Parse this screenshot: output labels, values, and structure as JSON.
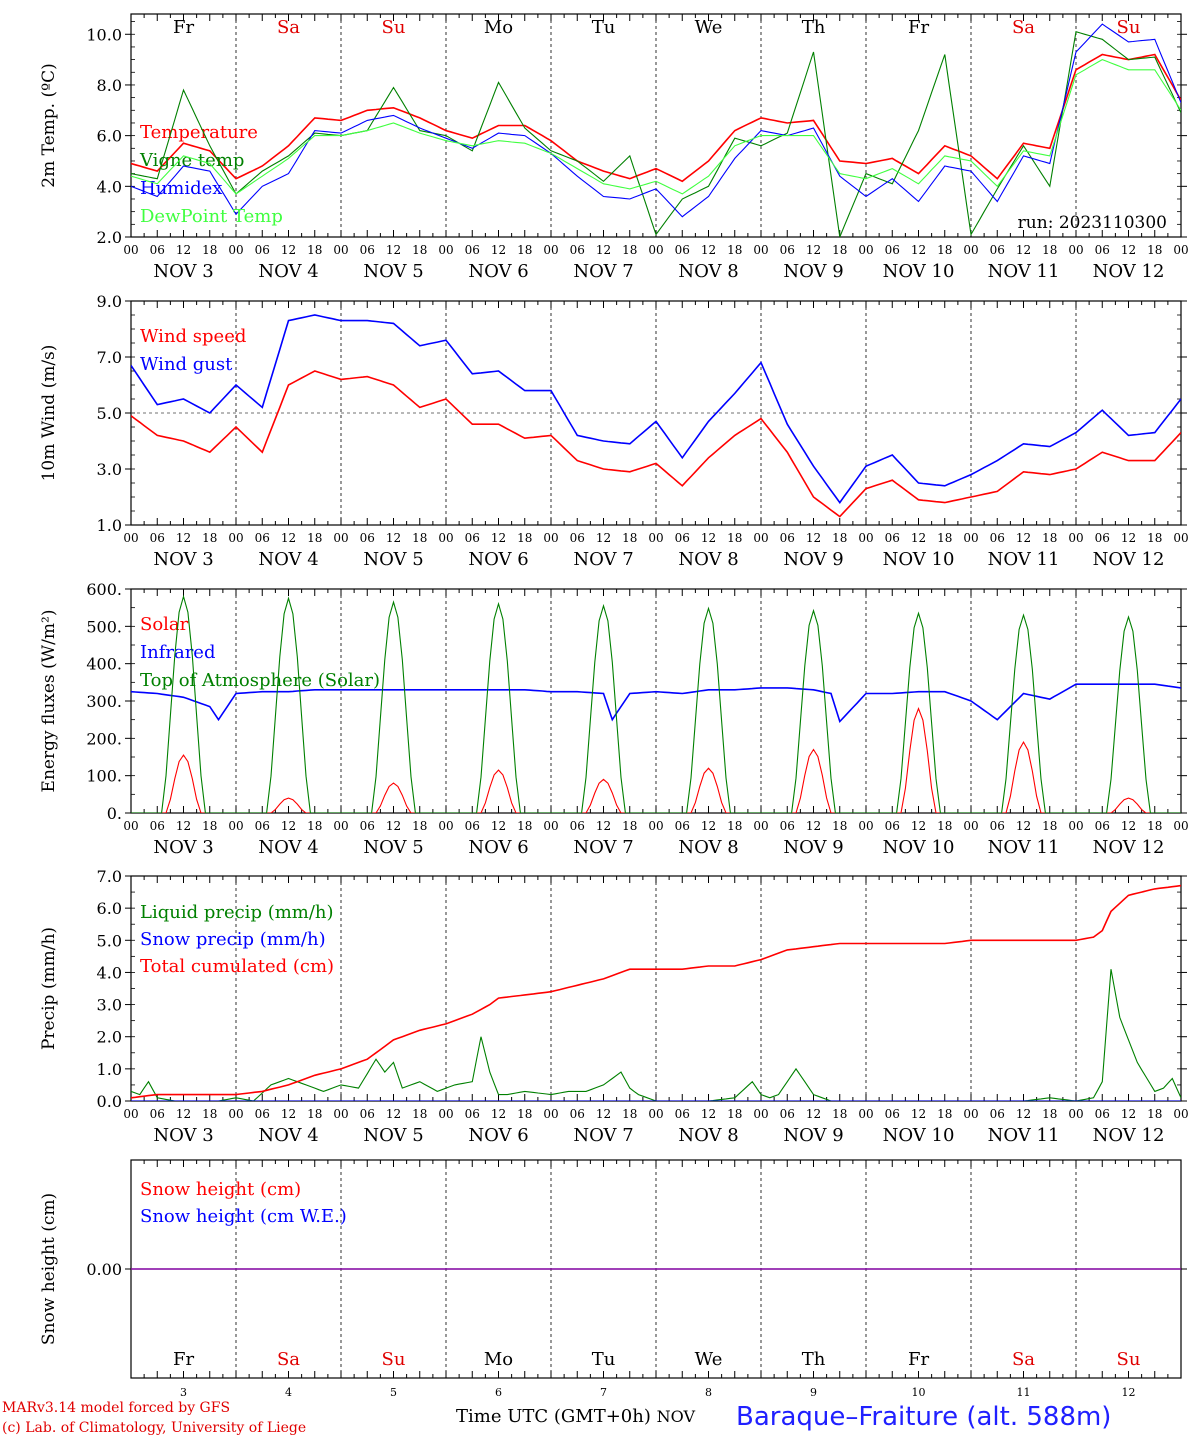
{
  "days": [
    "Fr",
    "Sa",
    "Su",
    "Mo",
    "Tu",
    "We",
    "Th",
    "Fr",
    "Sa",
    "Su"
  ],
  "weekend_days": [
    "Sa",
    "Su"
  ],
  "weekend_color": "#e00000",
  "date_labels": [
    "NOV  3",
    "NOV  4",
    "NOV  5",
    "NOV  6",
    "NOV  7",
    "NOV  8",
    "NOV  9",
    "NOV 10",
    "NOV 11",
    "NOV 12"
  ],
  "hour_ticks": [
    "00",
    "06",
    "12",
    "18"
  ],
  "bottom_day_numbers": [
    "3",
    "4",
    "5",
    "6",
    "7",
    "8",
    "9",
    "10",
    "11",
    "12"
  ],
  "footer": {
    "model": "MARv3.14 model forced by GFS",
    "lab": "(c) Lab. of Climatology, University of Liege",
    "axis": "Time UTC (GMT+0h)",
    "month": "NOV",
    "station": "Baraque–Fraiture (alt. 588m)"
  },
  "chart_data": [
    {
      "type": "line",
      "ylabel": "2m Temp. (ºC)",
      "ylim": [
        2.0,
        10.8
      ],
      "yticks": [
        "2.0",
        "4.0",
        "6.0",
        "8.0",
        "10.0"
      ],
      "annotation": "run: 2023110300",
      "x_unit": "hours since NOV 3 00 UTC",
      "series": [
        {
          "name": "Temperature",
          "color": "#ff0000",
          "x": [
            0,
            6,
            12,
            18,
            24,
            30,
            36,
            42,
            48,
            54,
            60,
            66,
            72,
            78,
            84,
            90,
            96,
            102,
            108,
            114,
            120,
            126,
            132,
            138,
            144,
            150,
            156,
            162,
            168,
            174,
            180,
            186,
            192,
            198,
            204,
            210,
            216,
            222,
            228,
            234,
            240
          ],
          "y": [
            4.9,
            4.6,
            5.7,
            5.4,
            4.3,
            4.8,
            5.6,
            6.7,
            6.6,
            7.0,
            7.1,
            6.7,
            6.2,
            5.9,
            6.4,
            6.4,
            5.8,
            5.0,
            4.6,
            4.3,
            4.7,
            4.2,
            5.0,
            6.2,
            6.7,
            6.5,
            6.6,
            5.0,
            4.9,
            5.1,
            4.5,
            5.6,
            5.2,
            4.3,
            5.7,
            5.5,
            8.6,
            9.2,
            9.0,
            9.2,
            7.4
          ]
        },
        {
          "name": "Vigne temp",
          "color": "#008000",
          "x": [
            0,
            6,
            12,
            18,
            24,
            30,
            36,
            42,
            48,
            54,
            60,
            66,
            72,
            78,
            84,
            90,
            96,
            102,
            108,
            114,
            120,
            126,
            132,
            138,
            144,
            150,
            156,
            162,
            168,
            174,
            180,
            186,
            192,
            198,
            204,
            210,
            216,
            222,
            228,
            234,
            240
          ],
          "y": [
            4.5,
            4.3,
            7.8,
            5.6,
            3.7,
            4.6,
            5.2,
            6.1,
            6.0,
            6.2,
            7.9,
            6.2,
            6.0,
            5.4,
            8.1,
            6.3,
            5.4,
            5.0,
            4.2,
            5.2,
            2.1,
            3.5,
            4.0,
            5.9,
            5.6,
            6.1,
            9.3,
            2.0,
            4.5,
            4.1,
            6.2,
            9.2,
            2.1,
            3.9,
            5.6,
            4.0,
            10.1,
            9.8,
            9.0,
            9.1,
            6.9
          ]
        },
        {
          "name": "Humidex",
          "color": "#0000ff",
          "x": [
            0,
            6,
            12,
            18,
            24,
            30,
            36,
            42,
            48,
            54,
            60,
            66,
            72,
            78,
            84,
            90,
            96,
            102,
            108,
            114,
            120,
            126,
            132,
            138,
            144,
            150,
            156,
            162,
            168,
            174,
            180,
            186,
            192,
            198,
            204,
            210,
            216,
            222,
            228,
            234,
            240
          ],
          "y": [
            4.0,
            3.6,
            4.8,
            4.6,
            2.9,
            4.0,
            4.5,
            6.2,
            6.1,
            6.6,
            6.8,
            6.3,
            5.9,
            5.5,
            6.1,
            6.0,
            5.3,
            4.4,
            3.6,
            3.5,
            3.9,
            2.8,
            3.6,
            5.1,
            6.2,
            6.0,
            6.3,
            4.4,
            3.6,
            4.3,
            3.4,
            4.8,
            4.6,
            3.4,
            5.2,
            4.9,
            9.3,
            10.4,
            9.7,
            9.8,
            7.3
          ]
        },
        {
          "name": "DewPoint Temp",
          "color": "#40ff40",
          "x": [
            0,
            6,
            12,
            18,
            24,
            30,
            36,
            42,
            48,
            54,
            60,
            66,
            72,
            78,
            84,
            90,
            96,
            102,
            108,
            114,
            120,
            126,
            132,
            138,
            144,
            150,
            156,
            162,
            168,
            174,
            180,
            186,
            192,
            198,
            204,
            210,
            216,
            222,
            228,
            234,
            240
          ],
          "y": [
            4.4,
            4.1,
            5.2,
            4.9,
            3.7,
            4.4,
            5.1,
            6.0,
            6.0,
            6.2,
            6.5,
            6.1,
            5.8,
            5.6,
            5.8,
            5.7,
            5.3,
            4.7,
            4.1,
            3.9,
            4.2,
            3.7,
            4.4,
            5.6,
            6.0,
            6.0,
            6.0,
            4.5,
            4.3,
            4.7,
            4.1,
            5.2,
            5.0,
            4.0,
            5.4,
            5.2,
            8.4,
            9.0,
            8.6,
            8.6,
            7.0
          ]
        }
      ]
    },
    {
      "type": "line",
      "ylabel": "10m Wind (m/s)",
      "ylim": [
        1.0,
        9.0
      ],
      "yticks": [
        "1.0",
        "3.0",
        "5.0",
        "7.0",
        "9.0"
      ],
      "dashed_reference": 5.0,
      "x_unit": "hours since NOV 3 00 UTC",
      "series": [
        {
          "name": "Wind speed",
          "color": "#ff0000",
          "x": [
            0,
            6,
            12,
            18,
            24,
            30,
            36,
            42,
            48,
            54,
            60,
            66,
            72,
            78,
            84,
            90,
            96,
            102,
            108,
            114,
            120,
            126,
            132,
            138,
            144,
            150,
            156,
            162,
            168,
            174,
            180,
            186,
            192,
            198,
            204,
            210,
            216,
            222,
            228,
            234,
            240
          ],
          "y": [
            4.9,
            4.2,
            4.0,
            3.6,
            4.5,
            3.6,
            6.0,
            6.5,
            6.2,
            6.3,
            6.0,
            5.2,
            5.5,
            4.6,
            4.6,
            4.1,
            4.2,
            3.3,
            3.0,
            2.9,
            3.2,
            2.4,
            3.4,
            4.2,
            4.8,
            3.6,
            2.0,
            1.3,
            2.3,
            2.6,
            1.9,
            1.8,
            2.0,
            2.2,
            2.9,
            2.8,
            3.0,
            3.6,
            3.3,
            3.3,
            4.3
          ]
        },
        {
          "name": "Wind gust",
          "color": "#0000ff",
          "x": [
            0,
            6,
            12,
            18,
            24,
            30,
            36,
            42,
            48,
            54,
            60,
            66,
            72,
            78,
            84,
            90,
            96,
            102,
            108,
            114,
            120,
            126,
            132,
            138,
            144,
            150,
            156,
            162,
            168,
            174,
            180,
            186,
            192,
            198,
            204,
            210,
            216,
            222,
            228,
            234,
            240
          ],
          "y": [
            6.7,
            5.3,
            5.5,
            5.0,
            6.0,
            5.2,
            8.3,
            8.5,
            8.3,
            8.3,
            8.2,
            7.4,
            7.6,
            6.4,
            6.5,
            5.8,
            5.8,
            4.2,
            4.0,
            3.9,
            4.7,
            3.4,
            4.7,
            5.7,
            6.8,
            4.6,
            3.1,
            1.8,
            3.1,
            3.5,
            2.5,
            2.4,
            2.8,
            3.3,
            3.9,
            3.8,
            4.3,
            5.1,
            4.2,
            4.3,
            5.5
          ]
        }
      ]
    },
    {
      "type": "line",
      "ylabel": "Energy fluxes (W/m²)",
      "ylim": [
        0,
        600
      ],
      "yticks": [
        "0.",
        "100.",
        "200.",
        "300.",
        "400.",
        "500.",
        "600."
      ],
      "x_unit": "hours since NOV 3 00 UTC",
      "series": [
        {
          "name": "Solar",
          "color": "#ff0000",
          "peaks": [
            155,
            40,
            80,
            115,
            90,
            120,
            170,
            280,
            190,
            40
          ]
        },
        {
          "name": "Infrared",
          "color": "#0000ff",
          "x": [
            0,
            6,
            12,
            18,
            20,
            24,
            30,
            36,
            42,
            48,
            54,
            60,
            66,
            72,
            78,
            84,
            90,
            96,
            102,
            108,
            110,
            114,
            120,
            126,
            132,
            138,
            144,
            150,
            156,
            160,
            162,
            168,
            174,
            180,
            186,
            192,
            198,
            204,
            210,
            216,
            222,
            228,
            234,
            240
          ],
          "y": [
            325,
            320,
            310,
            285,
            250,
            320,
            325,
            325,
            330,
            330,
            330,
            330,
            330,
            330,
            330,
            330,
            330,
            325,
            325,
            320,
            250,
            320,
            325,
            320,
            330,
            330,
            335,
            335,
            330,
            320,
            245,
            320,
            320,
            325,
            325,
            300,
            250,
            320,
            305,
            345,
            345,
            345,
            345,
            335
          ]
        },
        {
          "name": "Top of Atmosphere (Solar)",
          "color": "#008000",
          "peaks": [
            580,
            575,
            565,
            560,
            555,
            548,
            542,
            535,
            530,
            525
          ]
        }
      ]
    },
    {
      "type": "line",
      "ylabel": "Precip (mm/h)",
      "ylim": [
        0.0,
        7.0
      ],
      "yticks": [
        "0.0",
        "1.0",
        "2.0",
        "3.0",
        "4.0",
        "5.0",
        "6.0",
        "7.0"
      ],
      "x_unit": "hours since NOV 3 00 UTC",
      "series": [
        {
          "name": "Liquid precip (mm/h)",
          "color": "#008000",
          "x": [
            0,
            2,
            4,
            6,
            10,
            16,
            20,
            24,
            28,
            32,
            36,
            40,
            44,
            48,
            52,
            56,
            58,
            60,
            62,
            66,
            70,
            74,
            78,
            80,
            82,
            84,
            86,
            90,
            96,
            100,
            104,
            108,
            112,
            114,
            116,
            120,
            126,
            132,
            138,
            142,
            144,
            146,
            148,
            152,
            156,
            160,
            168,
            180,
            192,
            204,
            210,
            216,
            220,
            222,
            224,
            226,
            230,
            234,
            236,
            238,
            240
          ],
          "y": [
            0.3,
            0.2,
            0.6,
            0.1,
            0.0,
            0.0,
            0.0,
            0.1,
            0.0,
            0.5,
            0.7,
            0.5,
            0.3,
            0.5,
            0.4,
            1.3,
            0.9,
            1.2,
            0.4,
            0.6,
            0.3,
            0.5,
            0.6,
            2.0,
            0.9,
            0.2,
            0.2,
            0.3,
            0.2,
            0.3,
            0.3,
            0.5,
            0.9,
            0.4,
            0.2,
            0.0,
            0.0,
            0.0,
            0.1,
            0.6,
            0.2,
            0.1,
            0.2,
            1.0,
            0.2,
            0.0,
            0.0,
            0.0,
            0.0,
            0.0,
            0.1,
            0.0,
            0.1,
            0.6,
            4.1,
            2.6,
            1.2,
            0.3,
            0.4,
            0.7,
            0.1
          ]
        },
        {
          "name": "Snow precip (mm/h)",
          "color": "#0000ff",
          "x": [
            0,
            240
          ],
          "y": [
            0.0,
            0.0
          ]
        },
        {
          "name": "Total cumulated (cm)",
          "color": "#ff0000",
          "x": [
            0,
            6,
            12,
            18,
            24,
            30,
            36,
            42,
            48,
            54,
            60,
            66,
            72,
            78,
            82,
            84,
            90,
            96,
            102,
            108,
            114,
            120,
            126,
            132,
            138,
            144,
            150,
            156,
            162,
            168,
            174,
            180,
            186,
            192,
            198,
            204,
            210,
            216,
            220,
            222,
            224,
            228,
            234,
            240
          ],
          "y": [
            0.1,
            0.2,
            0.2,
            0.2,
            0.2,
            0.3,
            0.5,
            0.8,
            1.0,
            1.3,
            1.9,
            2.2,
            2.4,
            2.7,
            3.0,
            3.2,
            3.3,
            3.4,
            3.6,
            3.8,
            4.1,
            4.1,
            4.1,
            4.2,
            4.2,
            4.4,
            4.7,
            4.8,
            4.9,
            4.9,
            4.9,
            4.9,
            4.9,
            5.0,
            5.0,
            5.0,
            5.0,
            5.0,
            5.1,
            5.3,
            5.9,
            6.4,
            6.6,
            6.7
          ]
        }
      ]
    },
    {
      "type": "line",
      "ylabel": "Snow height (cm)",
      "yticks": [
        "0.00"
      ],
      "x_unit": "hours since NOV 3 00 UTC",
      "series": [
        {
          "name": "Snow height (cm)",
          "color": "#ff0000",
          "x": [
            0,
            240
          ],
          "y": [
            0,
            0
          ]
        },
        {
          "name": "Snow height (cm W.E.)",
          "color": "#0000ff",
          "x": [
            0,
            240
          ],
          "y": [
            0,
            0
          ]
        }
      ]
    }
  ]
}
